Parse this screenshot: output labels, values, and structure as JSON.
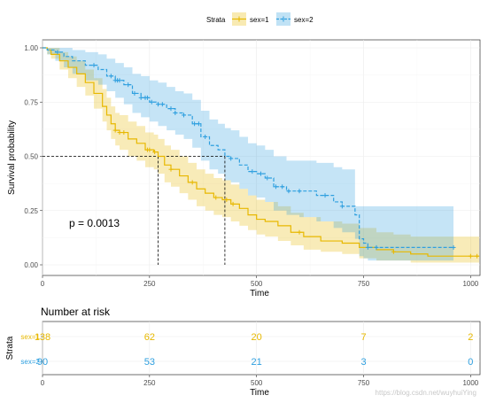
{
  "chart_data": {
    "type": "line",
    "subtype": "kaplan-meier",
    "legend": {
      "title": "Strata",
      "placement": "top"
    },
    "xlabel": "Time",
    "ylabel": "Survival probability",
    "xlim": [
      0,
      1022
    ],
    "ylim": [
      0,
      1
    ],
    "x_ticks": [
      0,
      250,
      500,
      750,
      1000
    ],
    "y_ticks": [
      0.0,
      0.25,
      0.5,
      0.75,
      1.0
    ],
    "y_tick_labels": [
      "0.00",
      "0.25",
      "0.50",
      "0.75",
      "1.00"
    ],
    "grid": true,
    "p_value_text": "p = 0.0013",
    "median_survival": [
      {
        "series": "sex=1",
        "time": 270
      },
      {
        "series": "sex=2",
        "time": 426
      }
    ],
    "series": [
      {
        "name": "sex=1",
        "color": "#E7B800",
        "points": [
          [
            0,
            1.0
          ],
          [
            11,
            0.99
          ],
          [
            20,
            0.97
          ],
          [
            40,
            0.94
          ],
          [
            60,
            0.91
          ],
          [
            80,
            0.88
          ],
          [
            100,
            0.84
          ],
          [
            120,
            0.79
          ],
          [
            140,
            0.73
          ],
          [
            150,
            0.69
          ],
          [
            160,
            0.65
          ],
          [
            170,
            0.62
          ],
          [
            180,
            0.61
          ],
          [
            200,
            0.58
          ],
          [
            220,
            0.56
          ],
          [
            240,
            0.53
          ],
          [
            260,
            0.52
          ],
          [
            270,
            0.5
          ],
          [
            285,
            0.46
          ],
          [
            300,
            0.44
          ],
          [
            320,
            0.41
          ],
          [
            340,
            0.38
          ],
          [
            360,
            0.35
          ],
          [
            380,
            0.33
          ],
          [
            400,
            0.31
          ],
          [
            420,
            0.3
          ],
          [
            440,
            0.28
          ],
          [
            460,
            0.26
          ],
          [
            480,
            0.23
          ],
          [
            500,
            0.21
          ],
          [
            520,
            0.2
          ],
          [
            550,
            0.18
          ],
          [
            580,
            0.15
          ],
          [
            610,
            0.13
          ],
          [
            650,
            0.11
          ],
          [
            700,
            0.1
          ],
          [
            740,
            0.08
          ],
          [
            780,
            0.07
          ],
          [
            820,
            0.06
          ],
          [
            860,
            0.05
          ],
          [
            900,
            0.04
          ],
          [
            960,
            0.04
          ],
          [
            1020,
            0.04
          ]
        ],
        "lower": [
          [
            0,
            1.0
          ],
          [
            11,
            0.97
          ],
          [
            20,
            0.95
          ],
          [
            40,
            0.9
          ],
          [
            60,
            0.86
          ],
          [
            80,
            0.82
          ],
          [
            100,
            0.78
          ],
          [
            120,
            0.72
          ],
          [
            140,
            0.66
          ],
          [
            150,
            0.62
          ],
          [
            160,
            0.58
          ],
          [
            170,
            0.55
          ],
          [
            180,
            0.53
          ],
          [
            200,
            0.5
          ],
          [
            220,
            0.48
          ],
          [
            240,
            0.45
          ],
          [
            260,
            0.44
          ],
          [
            270,
            0.42
          ],
          [
            285,
            0.38
          ],
          [
            300,
            0.36
          ],
          [
            320,
            0.33
          ],
          [
            340,
            0.3
          ],
          [
            360,
            0.27
          ],
          [
            380,
            0.25
          ],
          [
            400,
            0.23
          ],
          [
            420,
            0.22
          ],
          [
            440,
            0.2
          ],
          [
            460,
            0.18
          ],
          [
            480,
            0.16
          ],
          [
            500,
            0.14
          ],
          [
            520,
            0.13
          ],
          [
            550,
            0.11
          ],
          [
            580,
            0.09
          ],
          [
            610,
            0.07
          ],
          [
            650,
            0.06
          ],
          [
            700,
            0.05
          ],
          [
            740,
            0.03
          ],
          [
            780,
            0.02
          ],
          [
            820,
            0.02
          ],
          [
            860,
            0.01
          ],
          [
            900,
            0.01
          ],
          [
            960,
            0.01
          ],
          [
            1020,
            0.01
          ]
        ],
        "upper": [
          [
            0,
            1.0
          ],
          [
            11,
            1.0
          ],
          [
            20,
            1.0
          ],
          [
            40,
            0.98
          ],
          [
            60,
            0.96
          ],
          [
            80,
            0.94
          ],
          [
            100,
            0.9
          ],
          [
            120,
            0.86
          ],
          [
            140,
            0.81
          ],
          [
            150,
            0.77
          ],
          [
            160,
            0.73
          ],
          [
            170,
            0.7
          ],
          [
            180,
            0.69
          ],
          [
            200,
            0.66
          ],
          [
            220,
            0.64
          ],
          [
            240,
            0.61
          ],
          [
            260,
            0.6
          ],
          [
            270,
            0.58
          ],
          [
            285,
            0.55
          ],
          [
            300,
            0.53
          ],
          [
            320,
            0.5
          ],
          [
            340,
            0.47
          ],
          [
            360,
            0.44
          ],
          [
            380,
            0.42
          ],
          [
            400,
            0.4
          ],
          [
            420,
            0.39
          ],
          [
            440,
            0.37
          ],
          [
            460,
            0.35
          ],
          [
            480,
            0.32
          ],
          [
            500,
            0.3
          ],
          [
            520,
            0.29
          ],
          [
            550,
            0.27
          ],
          [
            580,
            0.24
          ],
          [
            610,
            0.22
          ],
          [
            650,
            0.2
          ],
          [
            700,
            0.19
          ],
          [
            740,
            0.17
          ],
          [
            780,
            0.15
          ],
          [
            820,
            0.14
          ],
          [
            860,
            0.13
          ],
          [
            900,
            0.13
          ],
          [
            960,
            0.13
          ],
          [
            1020,
            0.13
          ]
        ],
        "censored_x": [
          170,
          180,
          190,
          245,
          250,
          262,
          300,
          350,
          405,
          430,
          445,
          600,
          820,
          1000,
          1015
        ]
      },
      {
        "name": "sex=2",
        "color": "#2E9FDF",
        "points": [
          [
            0,
            1.0
          ],
          [
            11,
            0.99
          ],
          [
            30,
            0.98
          ],
          [
            50,
            0.96
          ],
          [
            70,
            0.94
          ],
          [
            100,
            0.92
          ],
          [
            130,
            0.9
          ],
          [
            150,
            0.87
          ],
          [
            170,
            0.85
          ],
          [
            190,
            0.83
          ],
          [
            210,
            0.79
          ],
          [
            230,
            0.77
          ],
          [
            250,
            0.75
          ],
          [
            270,
            0.74
          ],
          [
            290,
            0.72
          ],
          [
            310,
            0.7
          ],
          [
            330,
            0.69
          ],
          [
            350,
            0.65
          ],
          [
            370,
            0.59
          ],
          [
            390,
            0.55
          ],
          [
            410,
            0.53
          ],
          [
            426,
            0.5
          ],
          [
            440,
            0.49
          ],
          [
            460,
            0.46
          ],
          [
            480,
            0.43
          ],
          [
            500,
            0.42
          ],
          [
            520,
            0.4
          ],
          [
            540,
            0.36
          ],
          [
            570,
            0.34
          ],
          [
            600,
            0.34
          ],
          [
            640,
            0.32
          ],
          [
            680,
            0.29
          ],
          [
            700,
            0.27
          ],
          [
            730,
            0.23
          ],
          [
            740,
            0.12
          ],
          [
            750,
            0.1
          ],
          [
            760,
            0.08
          ],
          [
            800,
            0.08
          ],
          [
            960,
            0.08
          ]
        ],
        "lower": [
          [
            0,
            1.0
          ],
          [
            11,
            0.97
          ],
          [
            30,
            0.94
          ],
          [
            50,
            0.91
          ],
          [
            70,
            0.88
          ],
          [
            100,
            0.85
          ],
          [
            130,
            0.83
          ],
          [
            150,
            0.8
          ],
          [
            170,
            0.77
          ],
          [
            190,
            0.74
          ],
          [
            210,
            0.7
          ],
          [
            230,
            0.68
          ],
          [
            250,
            0.66
          ],
          [
            270,
            0.64
          ],
          [
            290,
            0.62
          ],
          [
            310,
            0.6
          ],
          [
            330,
            0.58
          ],
          [
            350,
            0.54
          ],
          [
            370,
            0.48
          ],
          [
            390,
            0.44
          ],
          [
            410,
            0.42
          ],
          [
            426,
            0.39
          ],
          [
            440,
            0.38
          ],
          [
            460,
            0.35
          ],
          [
            480,
            0.32
          ],
          [
            500,
            0.31
          ],
          [
            520,
            0.29
          ],
          [
            540,
            0.25
          ],
          [
            570,
            0.23
          ],
          [
            600,
            0.22
          ],
          [
            640,
            0.2
          ],
          [
            680,
            0.17
          ],
          [
            700,
            0.15
          ],
          [
            730,
            0.12
          ],
          [
            740,
            0.04
          ],
          [
            750,
            0.03
          ],
          [
            760,
            0.02
          ],
          [
            800,
            0.02
          ],
          [
            960,
            0.02
          ]
        ],
        "upper": [
          [
            0,
            1.0
          ],
          [
            11,
            1.0
          ],
          [
            30,
            1.0
          ],
          [
            50,
            1.0
          ],
          [
            70,
            0.99
          ],
          [
            100,
            0.98
          ],
          [
            130,
            0.97
          ],
          [
            150,
            0.95
          ],
          [
            170,
            0.93
          ],
          [
            190,
            0.91
          ],
          [
            210,
            0.88
          ],
          [
            230,
            0.87
          ],
          [
            250,
            0.85
          ],
          [
            270,
            0.84
          ],
          [
            290,
            0.82
          ],
          [
            310,
            0.8
          ],
          [
            330,
            0.79
          ],
          [
            350,
            0.76
          ],
          [
            370,
            0.71
          ],
          [
            390,
            0.67
          ],
          [
            410,
            0.65
          ],
          [
            426,
            0.63
          ],
          [
            440,
            0.62
          ],
          [
            460,
            0.59
          ],
          [
            480,
            0.56
          ],
          [
            500,
            0.55
          ],
          [
            520,
            0.53
          ],
          [
            540,
            0.5
          ],
          [
            570,
            0.48
          ],
          [
            600,
            0.48
          ],
          [
            640,
            0.47
          ],
          [
            680,
            0.45
          ],
          [
            700,
            0.44
          ],
          [
            730,
            0.27
          ],
          [
            740,
            0.27
          ],
          [
            750,
            0.27
          ],
          [
            760,
            0.27
          ],
          [
            800,
            0.27
          ],
          [
            960,
            0.27
          ]
        ],
        "censored_x": [
          35,
          120,
          160,
          170,
          175,
          180,
          200,
          215,
          230,
          240,
          245,
          255,
          270,
          280,
          300,
          310,
          330,
          355,
          365,
          380,
          440,
          490,
          510,
          525,
          545,
          560,
          575,
          600,
          660,
          700,
          760,
          780,
          960
        ]
      }
    ]
  },
  "risk_table": {
    "title": "Number at risk",
    "ylabel": "Strata",
    "xlabel": "Time",
    "times": [
      0,
      250,
      500,
      750,
      1000
    ],
    "rows": [
      {
        "label": "sex=1",
        "color": "#E7B800",
        "counts": [
          "138",
          "62",
          "20",
          "7",
          "2"
        ]
      },
      {
        "label": "sex=2",
        "color": "#2E9FDF",
        "counts": [
          "90",
          "53",
          "21",
          "3",
          "0"
        ]
      }
    ]
  },
  "watermark": "https://blog.csdn.net/wuyhuiYing"
}
